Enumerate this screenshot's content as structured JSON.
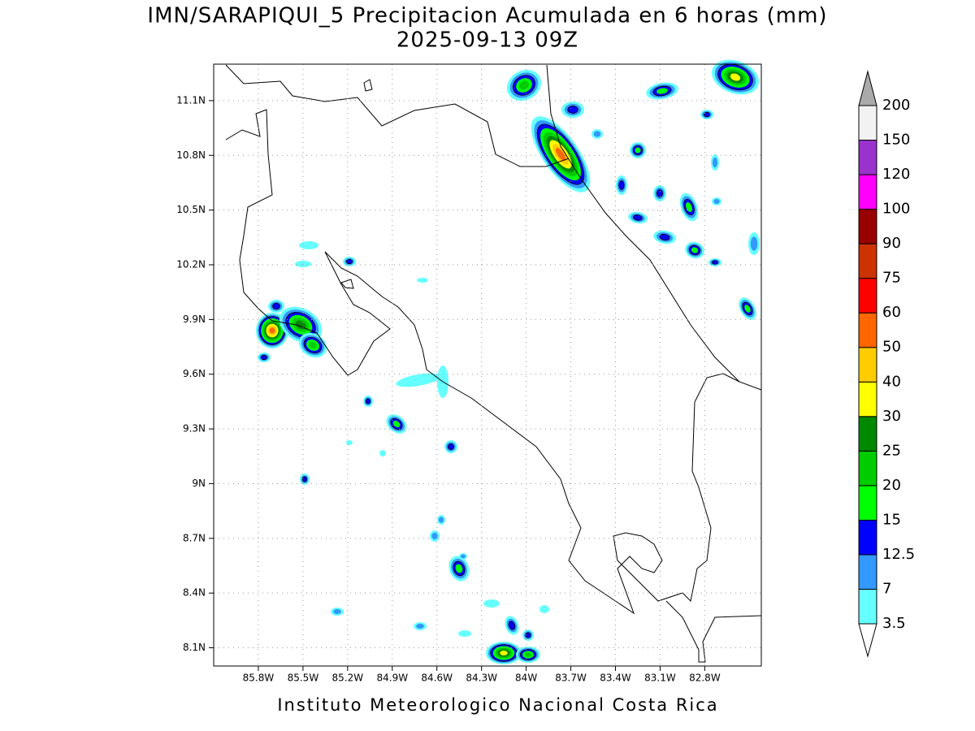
{
  "title": "IMN/SARAPIQUI_5 Precipitacion Acumulada en 6 horas (mm)",
  "subtitle": "2025-09-13 09Z",
  "footer": "Instituto Meteorologico Nacional Costa Rica",
  "map": {
    "xlim": [
      -86.1,
      -82.42
    ],
    "ylim": [
      8.0,
      11.3
    ],
    "grid": true,
    "xticks": [
      {
        "value": -85.8,
        "label": "85.8W"
      },
      {
        "value": -85.5,
        "label": "85.5W"
      },
      {
        "value": -85.2,
        "label": "85.2W"
      },
      {
        "value": -84.9,
        "label": "84.9W"
      },
      {
        "value": -84.6,
        "label": "84.6W"
      },
      {
        "value": -84.3,
        "label": "84.3W"
      },
      {
        "value": -84.0,
        "label": "84W"
      },
      {
        "value": -83.7,
        "label": "83.7W"
      },
      {
        "value": -83.4,
        "label": "83.4W"
      },
      {
        "value": -83.1,
        "label": "83.1W"
      },
      {
        "value": -82.8,
        "label": "82.8W"
      }
    ],
    "yticks": [
      {
        "value": 8.1,
        "label": "8.1N"
      },
      {
        "value": 8.4,
        "label": "8.4N"
      },
      {
        "value": 8.7,
        "label": "8.7N"
      },
      {
        "value": 9.0,
        "label": "9N"
      },
      {
        "value": 9.3,
        "label": "9.3N"
      },
      {
        "value": 9.6,
        "label": "9.6N"
      },
      {
        "value": 9.9,
        "label": "9.9N"
      },
      {
        "value": 10.2,
        "label": "10.2N"
      },
      {
        "value": 10.5,
        "label": "10.5N"
      },
      {
        "value": 10.8,
        "label": "10.8N"
      },
      {
        "value": 11.1,
        "label": "11.1N"
      }
    ]
  },
  "colorbar": {
    "levels": [
      3.5,
      7,
      12.5,
      15,
      20,
      25,
      30,
      40,
      50,
      60,
      75,
      90,
      100,
      120,
      150,
      200
    ],
    "colors": [
      "#66ffff",
      "#3399ff",
      "#0000ff",
      "#00ff00",
      "#00cc00",
      "#008800",
      "#ffff00",
      "#ffcc00",
      "#ff6600",
      "#ff0000",
      "#cc3300",
      "#990000",
      "#ff00ff",
      "#9933cc",
      "#f2f2f2"
    ],
    "under_color": "#ffffff",
    "over_color": "#aaaaaa"
  }
}
